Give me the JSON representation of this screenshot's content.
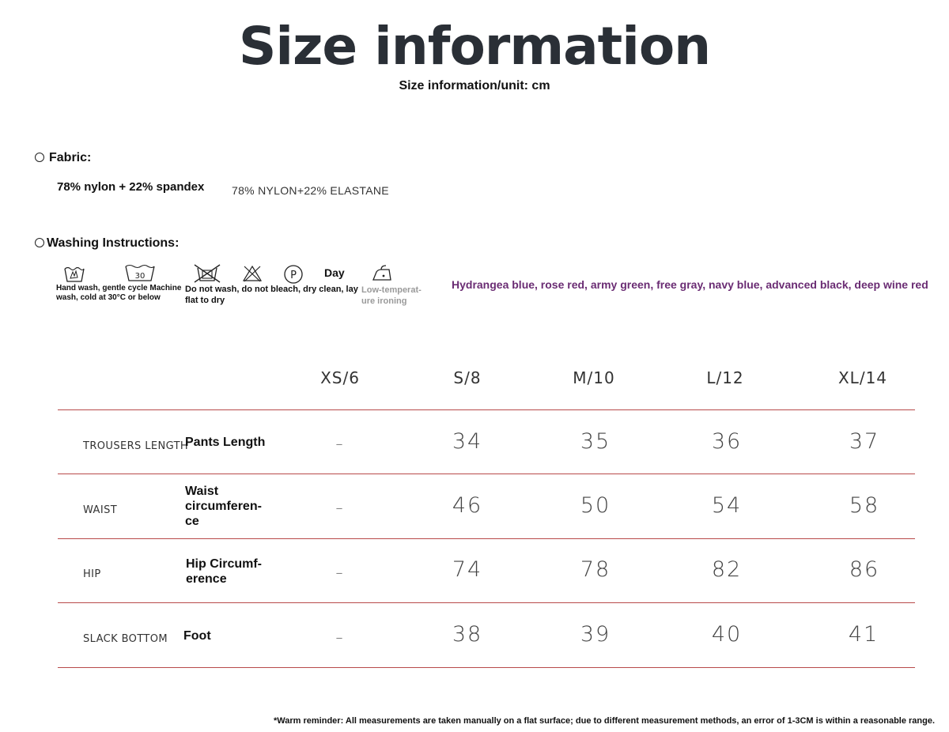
{
  "title": "Size information",
  "subtitle": "Size information/unit: cm",
  "fabric": {
    "heading": "Fabric:",
    "composition": "78% nylon + 22% spandex",
    "composition_label": "78% NYLON+22% ELASTANE"
  },
  "washing": {
    "heading": "Washing Instructions:",
    "tub_number": "30",
    "care1_text": "Hand wash, gentle cycle Machine wash, cold at 30°C or below",
    "care2_text": "Do not wash, do not bleach, dry clean, lay flat to dry",
    "dry_word": "Day",
    "iron_text": "Low-temperat-ure ironing",
    "colors": "Hydrangea blue, rose red, army green, free gray, navy blue, advanced black, deep wine red",
    "icons": [
      "handwash-icon",
      "wash-30-icon",
      "no-wash-icon",
      "no-bleach-icon",
      "dry-clean-p-icon",
      "iron-low-icon"
    ]
  },
  "table": {
    "sizes": [
      "XS/6",
      "S/8",
      "M/10",
      "L/12",
      "XL/14"
    ],
    "rows": [
      {
        "en": "TROUSERS LENGTH",
        "cn": "Pants Length",
        "values": [
          "–",
          "34",
          "35",
          "36",
          "37"
        ]
      },
      {
        "en": "WAIST",
        "cn": "Waist circumferen-ce",
        "values": [
          "–",
          "46",
          "50",
          "54",
          "58"
        ]
      },
      {
        "en": "HIP",
        "cn": "Hip Circumf-erence",
        "values": [
          "–",
          "74",
          "78",
          "82",
          "86"
        ]
      },
      {
        "en": "SLACK BOTTOM",
        "cn": "Foot",
        "values": [
          "–",
          "38",
          "39",
          "40",
          "41"
        ]
      }
    ]
  },
  "footnote": "*Warm reminder: All measurements are taken manually on a flat surface; due to different measurement methods, an error of 1-3CM is within a reasonable range.",
  "colors_hex": {
    "accent_purple": "#6a2c73",
    "rule_red": "#b84a4a",
    "title": "#2a2f36"
  }
}
